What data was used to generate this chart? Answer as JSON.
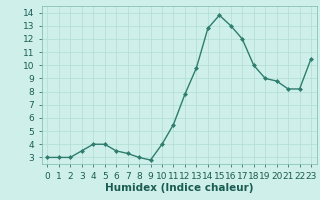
{
  "x": [
    0,
    1,
    2,
    3,
    4,
    5,
    6,
    7,
    8,
    9,
    10,
    11,
    12,
    13,
    14,
    15,
    16,
    17,
    18,
    19,
    20,
    21,
    22,
    23
  ],
  "y": [
    3.0,
    3.0,
    3.0,
    3.5,
    4.0,
    4.0,
    3.5,
    3.3,
    3.0,
    2.8,
    4.0,
    5.5,
    7.8,
    9.8,
    12.8,
    13.8,
    13.0,
    12.0,
    10.0,
    9.0,
    8.8,
    8.2,
    8.2,
    10.5
  ],
  "xlabel": "Humidex (Indice chaleur)",
  "ylim": [
    2.5,
    14.5
  ],
  "xlim": [
    -0.5,
    23.5
  ],
  "yticks": [
    3,
    4,
    5,
    6,
    7,
    8,
    9,
    10,
    11,
    12,
    13,
    14
  ],
  "xtick_labels": [
    "0",
    "1",
    "2",
    "3",
    "4",
    "5",
    "6",
    "7",
    "8",
    "9",
    "10",
    "11",
    "12",
    "13",
    "14",
    "15",
    "16",
    "17",
    "18",
    "19",
    "20",
    "21",
    "22",
    "23"
  ],
  "line_color": "#2e7d6e",
  "marker": "D",
  "marker_size": 2.0,
  "bg_color": "#cff0ea",
  "grid_color": "#b0ddd5",
  "xlabel_fontsize": 7.5,
  "tick_fontsize": 6.5,
  "linewidth": 1.0
}
